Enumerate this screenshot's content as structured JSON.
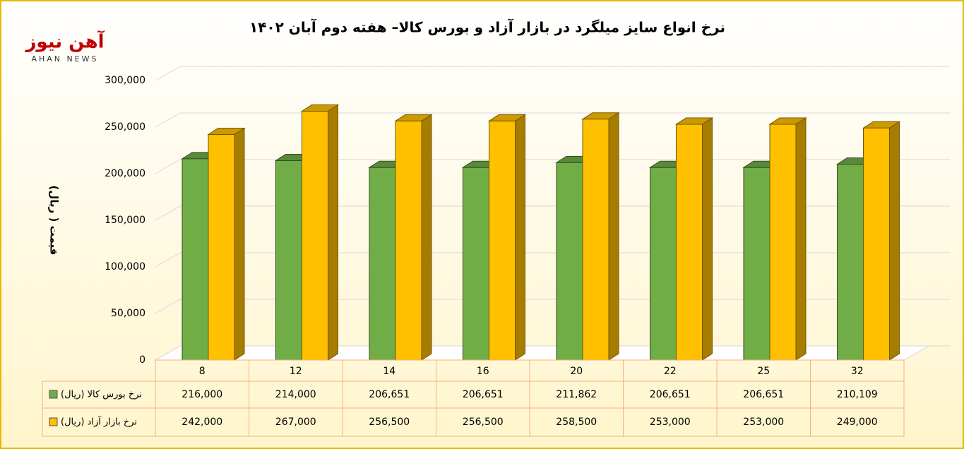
{
  "chart_data": {
    "type": "bar3d",
    "title": "نرخ انواع سایز میلگرد در بازار آزاد و بورس کالا– هفته دوم آبان ۱۴۰۲",
    "logo": {
      "name": "آهن نیوز",
      "tagline": "AHAN NEWS"
    },
    "y_label": "قیمت ( ریال)",
    "categories": [
      "8",
      "12",
      "14",
      "16",
      "20",
      "22",
      "25",
      "32"
    ],
    "series": [
      {
        "name": "نرخ بورس کالا (ریال)",
        "color": "#70ad47",
        "values": [
          216000,
          214000,
          206651,
          206651,
          211862,
          206651,
          206651,
          210109
        ],
        "value_labels": [
          "216,000",
          "214,000",
          "206,651",
          "206,651",
          "211,862",
          "206,651",
          "206,651",
          "210,109"
        ]
      },
      {
        "name": "نرخ بازار آزاد (ریال)",
        "color": "#ffc000",
        "values": [
          242000,
          267000,
          256500,
          256500,
          258500,
          253000,
          253000,
          249000
        ],
        "value_labels": [
          "242,000",
          "267,000",
          "256,500",
          "256,500",
          "258,500",
          "253,000",
          "253,000",
          "249,000"
        ]
      }
    ],
    "ylim": [
      0,
      300000
    ],
    "yticks": [
      0,
      {
        "value": 50000,
        "label": "50,000"
      },
      {
        "value": 100000,
        "label": "100,000"
      },
      {
        "value": 150000,
        "label": "150,000"
      },
      {
        "value": 200000,
        "label": "200,000"
      },
      {
        "value": 250000,
        "label": "250,000"
      },
      {
        "value": 300000,
        "label": "300,000"
      }
    ],
    "grid": true
  }
}
